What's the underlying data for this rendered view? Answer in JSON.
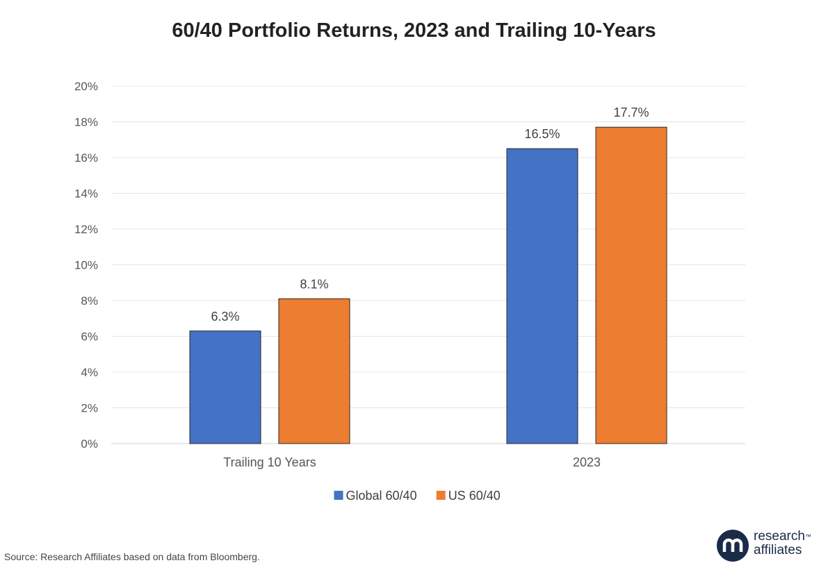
{
  "chart_data": {
    "type": "bar",
    "title": "60/40 Portfolio Returns, 2023 and Trailing 10-Years",
    "categories": [
      "Trailing 10 Years",
      "2023"
    ],
    "series": [
      {
        "name": "Global 60/40",
        "values": [
          6.3,
          16.5
        ],
        "labels": [
          "6.3%",
          "16.5%"
        ],
        "color": "#4472C4"
      },
      {
        "name": "US 60/40",
        "values": [
          8.1,
          17.7
        ],
        "labels": [
          "8.1%",
          "17.7%"
        ],
        "color": "#ED7D31"
      }
    ],
    "ylim": [
      0,
      20
    ],
    "yticks": [
      0,
      2,
      4,
      6,
      8,
      10,
      12,
      14,
      16,
      18,
      20
    ],
    "ytick_labels": [
      "0%",
      "2%",
      "4%",
      "6%",
      "8%",
      "10%",
      "12%",
      "14%",
      "16%",
      "18%",
      "20%"
    ],
    "grid": true,
    "legend_position": "bottom"
  },
  "footer": {
    "source": "Source: Research Affiliates based on data from Bloomberg."
  },
  "logo": {
    "line1": "research",
    "trademark": "™",
    "line2": "affiliates",
    "color": "#1a2b4a"
  }
}
